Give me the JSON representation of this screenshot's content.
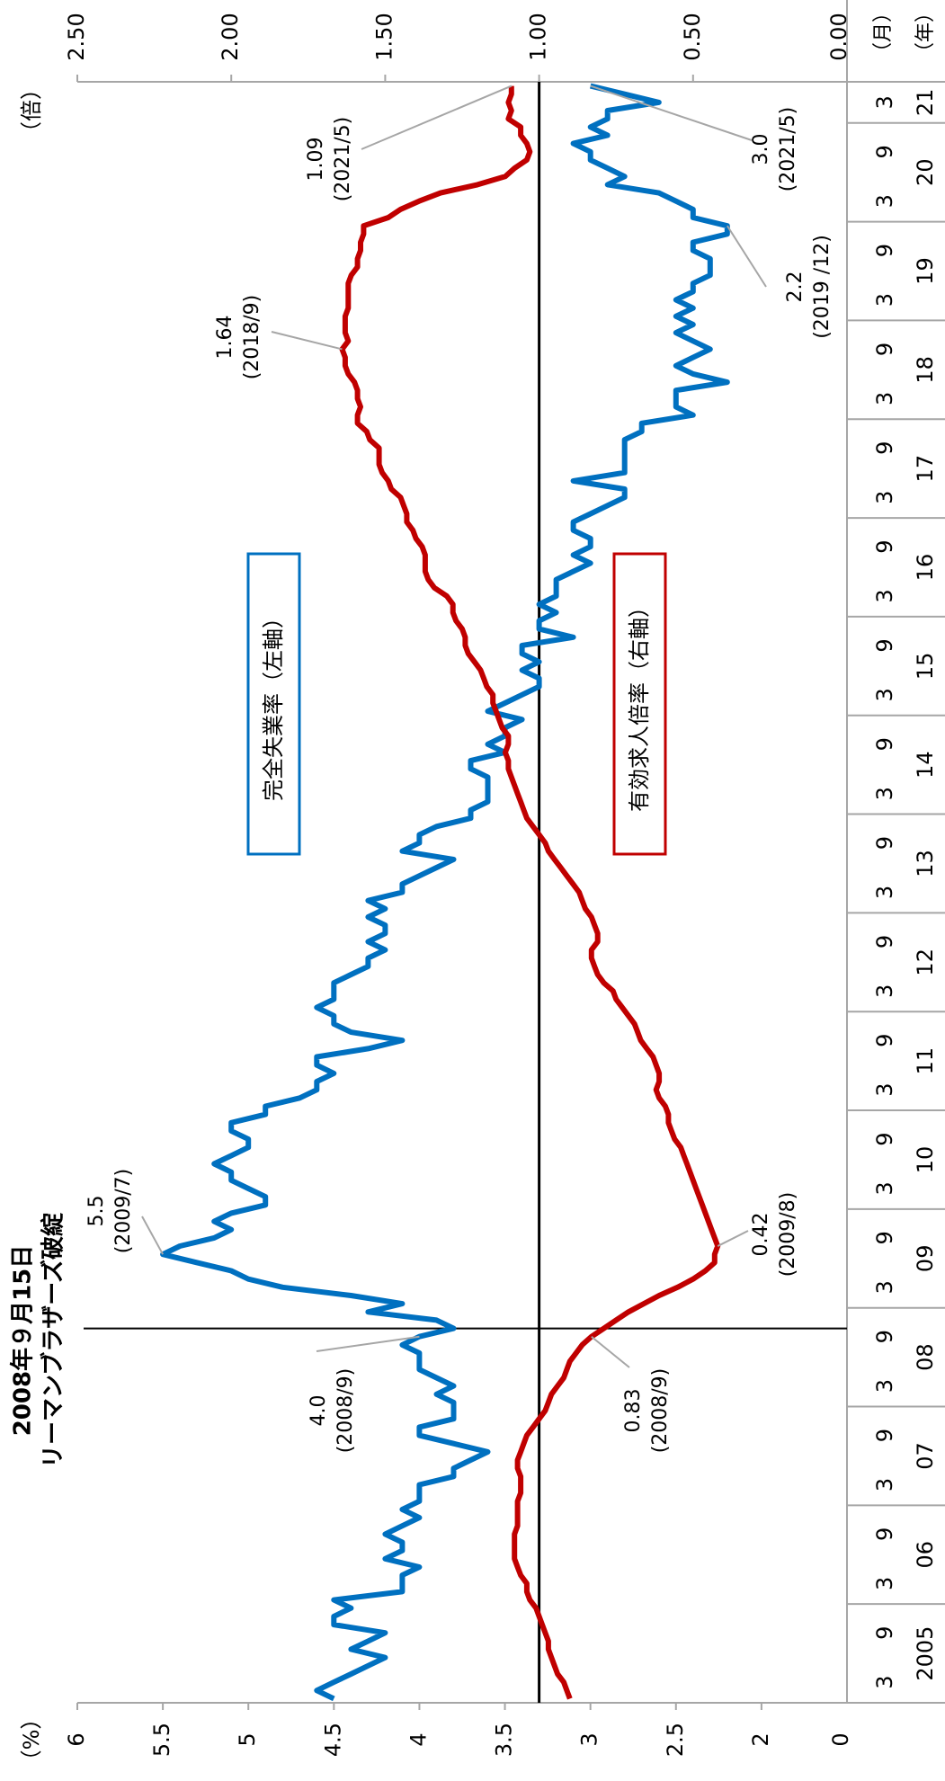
{
  "chart_data": {
    "type": "line",
    "ylabel": "（%）",
    "y2label": "（倍）",
    "xlabel_month": "（月）",
    "xlabel_year": "（年）",
    "ylim": [
      1.5,
      6
    ],
    "yticks": [
      2,
      2.5,
      3,
      3.5,
      4,
      4.5,
      5,
      5.5,
      6
    ],
    "y_origin_label": "0",
    "y2lim": [
      0,
      2.5
    ],
    "y2ticks": [
      {
        "value": 0,
        "label": "0.00"
      },
      {
        "value": 0.5,
        "label": "0.50"
      },
      {
        "value": 1,
        "label": "1.00"
      },
      {
        "value": 1.5,
        "label": "1.50"
      },
      {
        "value": 2,
        "label": "2.00"
      },
      {
        "value": 2.5,
        "label": "2.50"
      }
    ],
    "y2_reference": 1,
    "month_ticks": [
      3,
      9
    ],
    "year_labels": [
      "2005",
      "06",
      "07",
      "08",
      "09",
      "10",
      "11",
      "12",
      "13",
      "14",
      "15",
      "16",
      "17",
      "18",
      "19",
      "20",
      "21"
    ],
    "x": [
      "2005/1",
      "2005/2",
      "2005/3",
      "2005/4",
      "2005/5",
      "2005/6",
      "2005/7",
      "2005/8",
      "2005/9",
      "2005/10",
      "2005/11",
      "2005/12",
      "2006/1",
      "2006/2",
      "2006/3",
      "2006/4",
      "2006/5",
      "2006/6",
      "2006/7",
      "2006/8",
      "2006/9",
      "2006/10",
      "2006/11",
      "2006/12",
      "2007/1",
      "2007/2",
      "2007/3",
      "2007/4",
      "2007/5",
      "2007/6",
      "2007/7",
      "2007/8",
      "2007/9",
      "2007/10",
      "2007/11",
      "2007/12",
      "2008/1",
      "2008/2",
      "2008/3",
      "2008/4",
      "2008/5",
      "2008/6",
      "2008/7",
      "2008/8",
      "2008/9",
      "2008/10",
      "2008/11",
      "2008/12",
      "2009/1",
      "2009/2",
      "2009/3",
      "2009/4",
      "2009/5",
      "2009/6",
      "2009/7",
      "2009/8",
      "2009/9",
      "2009/10",
      "2009/11",
      "2009/12",
      "2010/1",
      "2010/2",
      "2010/3",
      "2010/4",
      "2010/5",
      "2010/6",
      "2010/7",
      "2010/8",
      "2010/9",
      "2010/10",
      "2010/11",
      "2010/12",
      "2011/1",
      "2011/2",
      "2011/3",
      "2011/4",
      "2011/5",
      "2011/6",
      "2011/7",
      "2011/8",
      "2011/9",
      "2011/10",
      "2011/11",
      "2011/12",
      "2012/1",
      "2012/2",
      "2012/3",
      "2012/4",
      "2012/5",
      "2012/6",
      "2012/7",
      "2012/8",
      "2012/9",
      "2012/10",
      "2012/11",
      "2012/12",
      "2013/1",
      "2013/2",
      "2013/3",
      "2013/4",
      "2013/5",
      "2013/6",
      "2013/7",
      "2013/8",
      "2013/9",
      "2013/10",
      "2013/11",
      "2013/12",
      "2014/1",
      "2014/2",
      "2014/3",
      "2014/4",
      "2014/5",
      "2014/6",
      "2014/7",
      "2014/8",
      "2014/9",
      "2014/10",
      "2014/11",
      "2014/12",
      "2015/1",
      "2015/2",
      "2015/3",
      "2015/4",
      "2015/5",
      "2015/6",
      "2015/7",
      "2015/8",
      "2015/9",
      "2015/10",
      "2015/11",
      "2015/12",
      "2016/1",
      "2016/2",
      "2016/3",
      "2016/4",
      "2016/5",
      "2016/6",
      "2016/7",
      "2016/8",
      "2016/9",
      "2016/10",
      "2016/11",
      "2016/12",
      "2017/1",
      "2017/2",
      "2017/3",
      "2017/4",
      "2017/5",
      "2017/6",
      "2017/7",
      "2017/8",
      "2017/9",
      "2017/10",
      "2017/11",
      "2017/12",
      "2018/1",
      "2018/2",
      "2018/3",
      "2018/4",
      "2018/5",
      "2018/6",
      "2018/7",
      "2018/8",
      "2018/9",
      "2018/10",
      "2018/11",
      "2018/12",
      "2019/1",
      "2019/2",
      "2019/3",
      "2019/4",
      "2019/5",
      "2019/6",
      "2019/7",
      "2019/8",
      "2019/9",
      "2019/10",
      "2019/11",
      "2019/12",
      "2020/1",
      "2020/2",
      "2020/3",
      "2020/4",
      "2020/5",
      "2020/6",
      "2020/7",
      "2020/8",
      "2020/9",
      "2020/10",
      "2020/11",
      "2020/12",
      "2021/1",
      "2021/2",
      "2021/3",
      "2021/4",
      "2021/5"
    ],
    "series": [
      {
        "name": "完全失業率（左軸）",
        "color": "#0070c0",
        "axis": "y",
        "values": [
          4.5,
          4.6,
          4.5,
          4.4,
          4.3,
          4.2,
          4.4,
          4.3,
          4.2,
          4.5,
          4.5,
          4.4,
          4.5,
          4.1,
          4.1,
          4.1,
          4.0,
          4.2,
          4.1,
          4.1,
          4.2,
          4.1,
          4.0,
          4.1,
          4.0,
          4.0,
          4.0,
          3.8,
          3.8,
          3.7,
          3.6,
          3.8,
          4.0,
          4.0,
          3.8,
          3.8,
          3.8,
          3.9,
          3.8,
          3.9,
          4.0,
          4.0,
          4.0,
          4.1,
          4.0,
          3.8,
          3.9,
          4.3,
          4.1,
          4.4,
          4.8,
          5.0,
          5.1,
          5.3,
          5.5,
          5.4,
          5.2,
          5.1,
          5.2,
          5.1,
          4.9,
          4.9,
          5.0,
          5.1,
          5.1,
          5.2,
          5.1,
          5.0,
          5.0,
          5.1,
          5.1,
          4.9,
          4.9,
          4.7,
          4.6,
          4.6,
          4.5,
          4.6,
          4.6,
          4.3,
          4.1,
          4.4,
          4.5,
          4.5,
          4.6,
          4.5,
          4.5,
          4.5,
          4.4,
          4.3,
          4.3,
          4.2,
          4.3,
          4.2,
          4.2,
          4.3,
          4.2,
          4.3,
          4.1,
          4.1,
          4.0,
          3.9,
          3.8,
          4.1,
          4.0,
          4.0,
          3.9,
          3.7,
          3.7,
          3.6,
          3.6,
          3.6,
          3.6,
          3.7,
          3.7,
          3.5,
          3.6,
          3.5,
          3.5,
          3.4,
          3.6,
          3.5,
          3.4,
          3.3,
          3.3,
          3.4,
          3.3,
          3.4,
          3.4,
          3.1,
          3.3,
          3.3,
          3.2,
          3.3,
          3.2,
          3.2,
          3.2,
          3.1,
          3.0,
          3.1,
          3.0,
          3.0,
          3.1,
          3.1,
          3.0,
          2.9,
          2.8,
          2.8,
          3.1,
          2.8,
          2.8,
          2.8,
          2.8,
          2.8,
          2.7,
          2.7,
          2.4,
          2.5,
          2.5,
          2.5,
          2.2,
          2.4,
          2.5,
          2.4,
          2.3,
          2.4,
          2.5,
          2.4,
          2.5,
          2.4,
          2.5,
          2.4,
          2.4,
          2.3,
          2.3,
          2.3,
          2.4,
          2.4,
          2.2,
          2.2,
          2.4,
          2.4,
          2.5,
          2.6,
          2.9,
          2.8,
          2.9,
          3.0,
          3.0,
          3.1,
          2.9,
          3.0,
          2.9,
          2.9,
          2.6,
          2.8,
          3.0
        ]
      },
      {
        "name": "有効求人倍率（右軸）",
        "color": "#c00000",
        "axis": "y2",
        "values": [
          0.9,
          0.91,
          0.92,
          0.94,
          0.95,
          0.96,
          0.97,
          0.97,
          0.98,
          0.99,
          1.0,
          1.01,
          1.03,
          1.04,
          1.04,
          1.06,
          1.07,
          1.08,
          1.08,
          1.08,
          1.08,
          1.07,
          1.07,
          1.07,
          1.07,
          1.06,
          1.06,
          1.06,
          1.07,
          1.07,
          1.06,
          1.05,
          1.04,
          1.02,
          1.0,
          0.98,
          0.97,
          0.96,
          0.94,
          0.92,
          0.91,
          0.9,
          0.88,
          0.86,
          0.83,
          0.79,
          0.75,
          0.71,
          0.66,
          0.61,
          0.55,
          0.5,
          0.46,
          0.43,
          0.43,
          0.42,
          0.43,
          0.44,
          0.45,
          0.46,
          0.47,
          0.48,
          0.49,
          0.5,
          0.51,
          0.52,
          0.53,
          0.54,
          0.56,
          0.57,
          0.58,
          0.58,
          0.59,
          0.61,
          0.62,
          0.61,
          0.61,
          0.62,
          0.63,
          0.65,
          0.67,
          0.68,
          0.69,
          0.71,
          0.73,
          0.75,
          0.76,
          0.79,
          0.81,
          0.82,
          0.83,
          0.83,
          0.81,
          0.81,
          0.82,
          0.83,
          0.85,
          0.86,
          0.87,
          0.89,
          0.91,
          0.93,
          0.95,
          0.97,
          0.98,
          1.0,
          1.02,
          1.04,
          1.05,
          1.06,
          1.07,
          1.08,
          1.09,
          1.1,
          1.1,
          1.11,
          1.1,
          1.1,
          1.12,
          1.13,
          1.14,
          1.15,
          1.15,
          1.17,
          1.18,
          1.19,
          1.21,
          1.23,
          1.24,
          1.24,
          1.25,
          1.27,
          1.28,
          1.28,
          1.3,
          1.34,
          1.36,
          1.37,
          1.37,
          1.37,
          1.38,
          1.4,
          1.41,
          1.43,
          1.43,
          1.44,
          1.45,
          1.48,
          1.49,
          1.51,
          1.52,
          1.52,
          1.52,
          1.55,
          1.56,
          1.59,
          1.59,
          1.58,
          1.59,
          1.59,
          1.6,
          1.62,
          1.63,
          1.63,
          1.64,
          1.62,
          1.63,
          1.63,
          1.63,
          1.62,
          1.62,
          1.62,
          1.62,
          1.61,
          1.59,
          1.59,
          1.58,
          1.58,
          1.57,
          1.57,
          1.49,
          1.45,
          1.39,
          1.32,
          1.2,
          1.11,
          1.08,
          1.04,
          1.03,
          1.04,
          1.06,
          1.06,
          1.1,
          1.09,
          1.1,
          1.09,
          1.09
        ]
      }
    ],
    "event": {
      "x": "2008/9",
      "text": [
        "2008年９月15日",
        "リーマンブラザーズ破綻"
      ],
      "color": "#ff0000"
    },
    "annotations": [
      {
        "series": 0,
        "x": "2009/7",
        "text": [
          "5.5",
          "(2009/7)"
        ]
      },
      {
        "series": 0,
        "x": "2008/9",
        "text": [
          "4.0",
          "(2008/9)"
        ]
      },
      {
        "series": 1,
        "x": "2008/9",
        "text": [
          "0.83",
          "(2008/9)"
        ]
      },
      {
        "series": 1,
        "x": "2009/8",
        "text": [
          "0.42",
          "(2009/8)"
        ]
      },
      {
        "series": 1,
        "x": "2018/9",
        "text": [
          "1.64",
          "(2018/9)"
        ]
      },
      {
        "series": 0,
        "x": "2019/12",
        "text": [
          "2.2",
          "(2019 /12)"
        ]
      },
      {
        "series": 1,
        "x": "2021/5",
        "text": [
          "1.09",
          "(2021/5)"
        ]
      },
      {
        "series": 0,
        "x": "2021/5",
        "text": [
          "3.0",
          "(2021/5)"
        ]
      }
    ]
  }
}
